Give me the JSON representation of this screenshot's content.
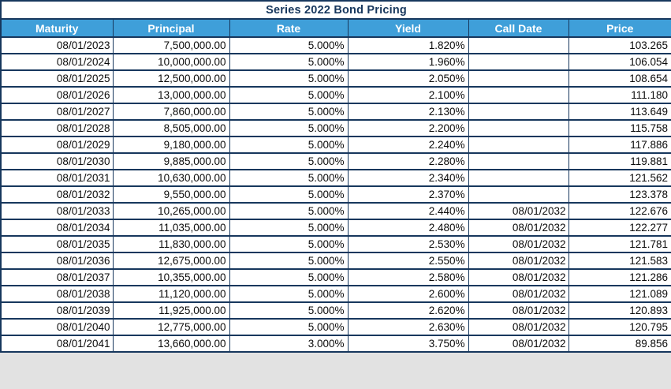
{
  "title": "Series 2022 Bond Pricing",
  "colors": {
    "header_bg": "#3f9fd9",
    "header_text": "#ffffff",
    "border": "#17375d",
    "title_text": "#17375d",
    "page_background": "#e2e2e2"
  },
  "table": {
    "columns": [
      {
        "key": "maturity",
        "label": "Maturity"
      },
      {
        "key": "principal",
        "label": "Principal"
      },
      {
        "key": "rate",
        "label": "Rate"
      },
      {
        "key": "yield",
        "label": "Yield"
      },
      {
        "key": "call_date",
        "label": "Call Date"
      },
      {
        "key": "price",
        "label": "Price"
      }
    ],
    "rows": [
      {
        "maturity": "08/01/2023",
        "principal": "7,500,000.00",
        "rate": "5.000%",
        "yield": "1.820%",
        "call_date": "",
        "price": "103.265"
      },
      {
        "maturity": "08/01/2024",
        "principal": "10,000,000.00",
        "rate": "5.000%",
        "yield": "1.960%",
        "call_date": "",
        "price": "106.054"
      },
      {
        "maturity": "08/01/2025",
        "principal": "12,500,000.00",
        "rate": "5.000%",
        "yield": "2.050%",
        "call_date": "",
        "price": "108.654"
      },
      {
        "maturity": "08/01/2026",
        "principal": "13,000,000.00",
        "rate": "5.000%",
        "yield": "2.100%",
        "call_date": "",
        "price": "111.180"
      },
      {
        "maturity": "08/01/2027",
        "principal": "7,860,000.00",
        "rate": "5.000%",
        "yield": "2.130%",
        "call_date": "",
        "price": "113.649"
      },
      {
        "maturity": "08/01/2028",
        "principal": "8,505,000.00",
        "rate": "5.000%",
        "yield": "2.200%",
        "call_date": "",
        "price": "115.758"
      },
      {
        "maturity": "08/01/2029",
        "principal": "9,180,000.00",
        "rate": "5.000%",
        "yield": "2.240%",
        "call_date": "",
        "price": "117.886"
      },
      {
        "maturity": "08/01/2030",
        "principal": "9,885,000.00",
        "rate": "5.000%",
        "yield": "2.280%",
        "call_date": "",
        "price": "119.881"
      },
      {
        "maturity": "08/01/2031",
        "principal": "10,630,000.00",
        "rate": "5.000%",
        "yield": "2.340%",
        "call_date": "",
        "price": "121.562"
      },
      {
        "maturity": "08/01/2032",
        "principal": "9,550,000.00",
        "rate": "5.000%",
        "yield": "2.370%",
        "call_date": "",
        "price": "123.378"
      },
      {
        "maturity": "08/01/2033",
        "principal": "10,265,000.00",
        "rate": "5.000%",
        "yield": "2.440%",
        "call_date": "08/01/2032",
        "price": "122.676"
      },
      {
        "maturity": "08/01/2034",
        "principal": "11,035,000.00",
        "rate": "5.000%",
        "yield": "2.480%",
        "call_date": "08/01/2032",
        "price": "122.277"
      },
      {
        "maturity": "08/01/2035",
        "principal": "11,830,000.00",
        "rate": "5.000%",
        "yield": "2.530%",
        "call_date": "08/01/2032",
        "price": "121.781"
      },
      {
        "maturity": "08/01/2036",
        "principal": "12,675,000.00",
        "rate": "5.000%",
        "yield": "2.550%",
        "call_date": "08/01/2032",
        "price": "121.583"
      },
      {
        "maturity": "08/01/2037",
        "principal": "10,355,000.00",
        "rate": "5.000%",
        "yield": "2.580%",
        "call_date": "08/01/2032",
        "price": "121.286"
      },
      {
        "maturity": "08/01/2038",
        "principal": "11,120,000.00",
        "rate": "5.000%",
        "yield": "2.600%",
        "call_date": "08/01/2032",
        "price": "121.089"
      },
      {
        "maturity": "08/01/2039",
        "principal": "11,925,000.00",
        "rate": "5.000%",
        "yield": "2.620%",
        "call_date": "08/01/2032",
        "price": "120.893"
      },
      {
        "maturity": "08/01/2040",
        "principal": "12,775,000.00",
        "rate": "5.000%",
        "yield": "2.630%",
        "call_date": "08/01/2032",
        "price": "120.795"
      },
      {
        "maturity": "08/01/2041",
        "principal": "13,660,000.00",
        "rate": "3.000%",
        "yield": "3.750%",
        "call_date": "08/01/2032",
        "price": "89.856"
      }
    ]
  }
}
